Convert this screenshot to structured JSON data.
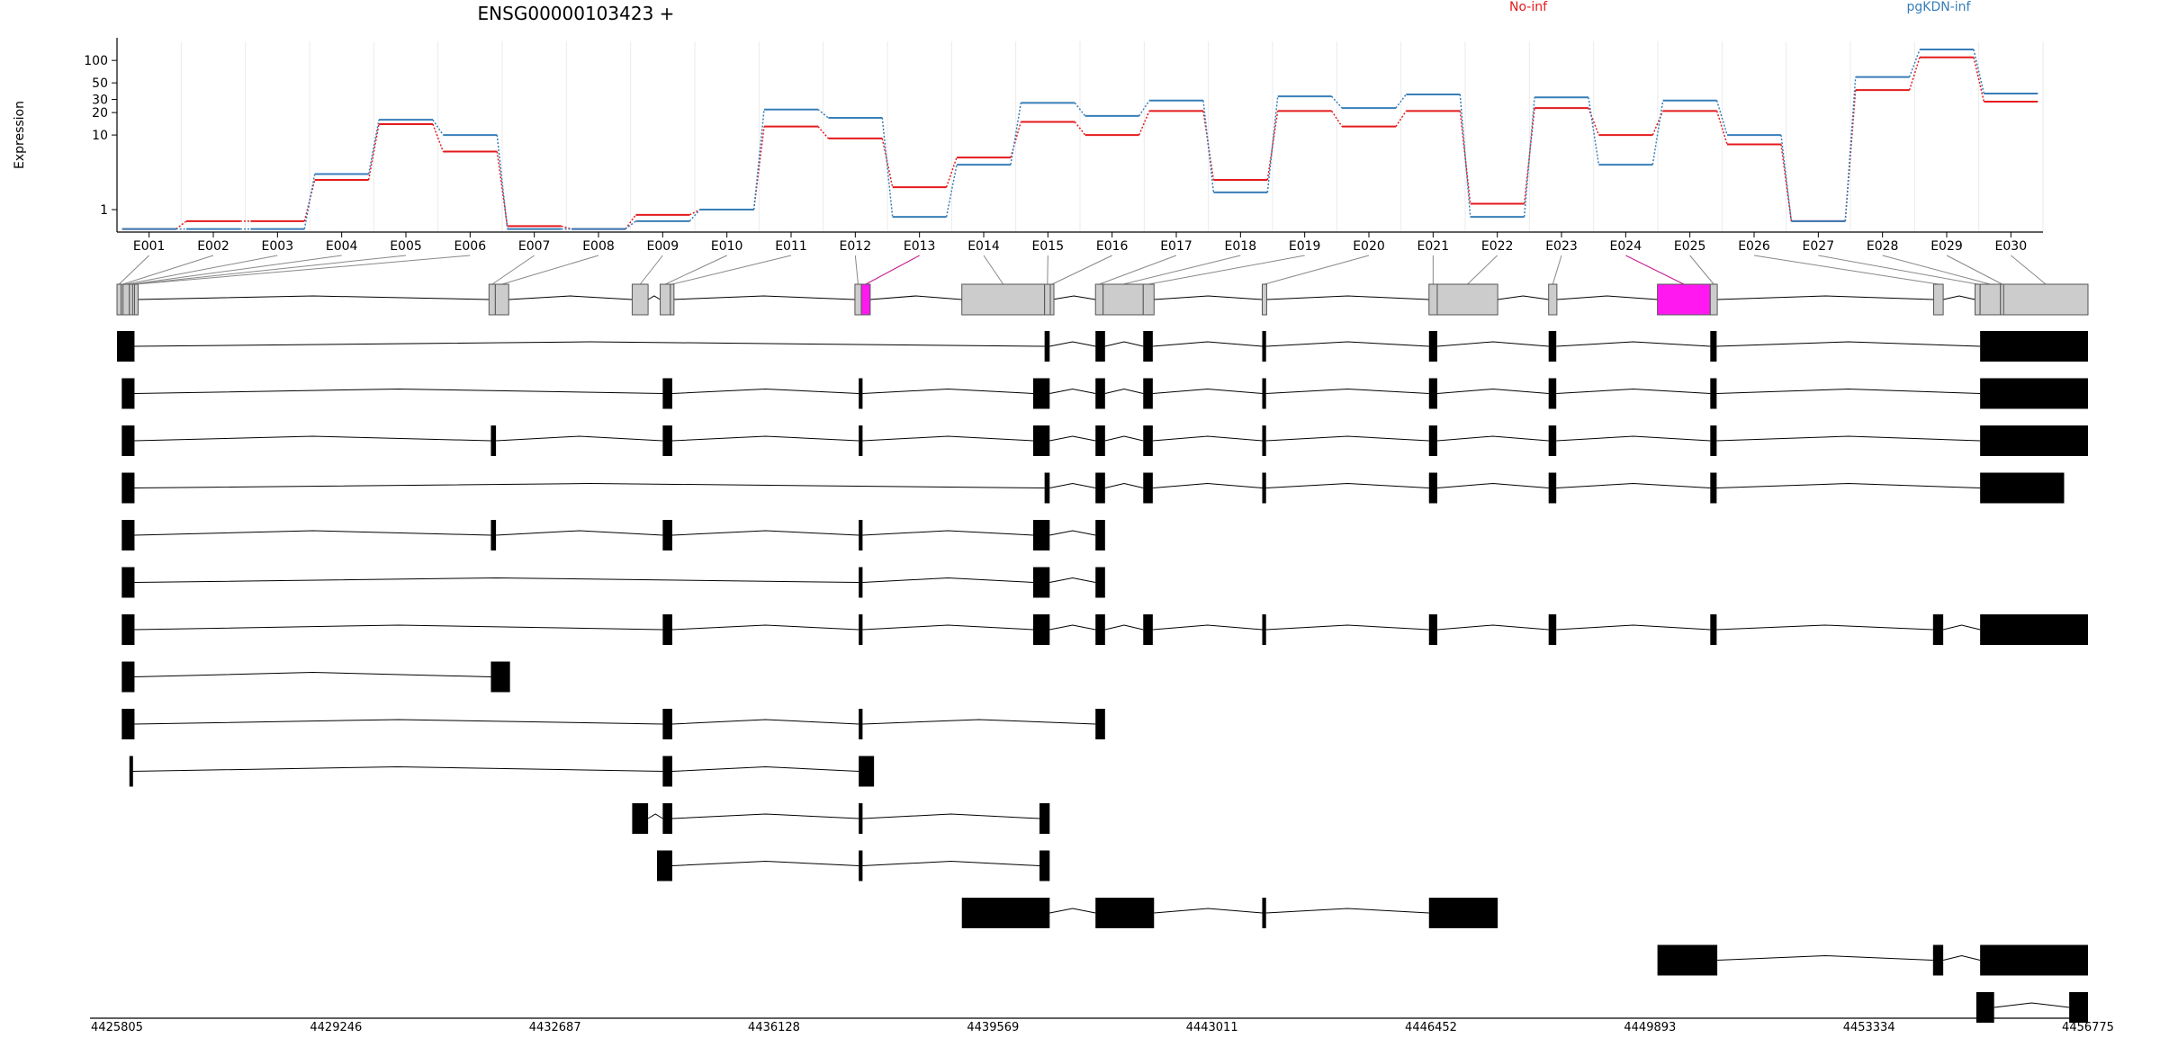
{
  "chart_data": {
    "type": "line",
    "title": "ENSG00000103423 +",
    "ylabel": "Expression",
    "yscale": "log",
    "ylim": [
      0.5,
      180
    ],
    "yticks": [
      1,
      10,
      20,
      30,
      50,
      100
    ],
    "grid": true,
    "legend_position": "top",
    "categories": [
      "E001",
      "E002",
      "E003",
      "E004",
      "E005",
      "E006",
      "E007",
      "E008",
      "E009",
      "E010",
      "E011",
      "E012",
      "E013",
      "E014",
      "E015",
      "E016",
      "E017",
      "E018",
      "E019",
      "E020",
      "E021",
      "E022",
      "E023",
      "E024",
      "E025",
      "E026",
      "E027",
      "E028",
      "E029",
      "E030"
    ],
    "series": [
      {
        "name": "No-inf",
        "color": "#e41a1c",
        "values": [
          0.55,
          0.7,
          0.7,
          2.5,
          14,
          6,
          0.6,
          0.55,
          0.85,
          1,
          13,
          9,
          2,
          5,
          15,
          10,
          21,
          2.5,
          21,
          13,
          21,
          1.2,
          23,
          10,
          21,
          7.5,
          0.7,
          40,
          110,
          28
        ]
      },
      {
        "name": "pgKDN-inf",
        "color": "#377eb8",
        "values": [
          0.55,
          0.55,
          0.55,
          3,
          16,
          10,
          0.55,
          0.55,
          0.7,
          1,
          22,
          17,
          0.8,
          4,
          27,
          18,
          29,
          1.7,
          33,
          23,
          35,
          0.8,
          32,
          4,
          29,
          10,
          0.7,
          60,
          140,
          36
        ]
      }
    ],
    "gene_model": {
      "genomic_ticks": [
        "4425805",
        "4429246",
        "4432687",
        "4436128",
        "4439569",
        "4443011",
        "4446452",
        "4449893",
        "4453334",
        "4456775"
      ],
      "genomic_range": [
        4425805,
        4456775
      ],
      "exon_bins": [
        {
          "id": "E001",
          "start": 4425805,
          "end": 4425870
        },
        {
          "id": "E002",
          "start": 4425870,
          "end": 4425900
        },
        {
          "id": "E003",
          "start": 4425900,
          "end": 4426000
        },
        {
          "id": "E004",
          "start": 4426000,
          "end": 4426050
        },
        {
          "id": "E005",
          "start": 4426050,
          "end": 4426080
        },
        {
          "id": "E006",
          "start": 4426080,
          "end": 4426120
        },
        {
          "id": "E007",
          "start": 4431650,
          "end": 4431750
        },
        {
          "id": "E008",
          "start": 4431750,
          "end": 4431960
        },
        {
          "id": "E009",
          "start": 4433900,
          "end": 4434150
        },
        {
          "id": "E010",
          "start": 4434340,
          "end": 4434500
        },
        {
          "id": "E011",
          "start": 4434500,
          "end": 4434530
        },
        {
          "id": "E012",
          "start": 4437400,
          "end": 4437500
        },
        {
          "id": "E013",
          "start": 4437500,
          "end": 4437640
        },
        {
          "id": "E014",
          "start": 4439080,
          "end": 4440380
        },
        {
          "id": "E015",
          "start": 4440380,
          "end": 4440470
        },
        {
          "id": "E016",
          "start": 4440470,
          "end": 4440500
        },
        {
          "id": "E017",
          "start": 4441180,
          "end": 4441300
        },
        {
          "id": "E018",
          "start": 4441300,
          "end": 4441930
        },
        {
          "id": "E019",
          "start": 4441930,
          "end": 4442100
        },
        {
          "id": "E020",
          "start": 4443800,
          "end": 4443870
        },
        {
          "id": "E021",
          "start": 4446420,
          "end": 4446550
        },
        {
          "id": "E022",
          "start": 4446550,
          "end": 4447500
        },
        {
          "id": "E023",
          "start": 4448300,
          "end": 4448430
        },
        {
          "id": "E024",
          "start": 4450010,
          "end": 4450840
        },
        {
          "id": "E025",
          "start": 4450840,
          "end": 4450950
        },
        {
          "id": "E026",
          "start": 4454350,
          "end": 4454500
        },
        {
          "id": "E027",
          "start": 4455000,
          "end": 4455080
        },
        {
          "id": "E028",
          "start": 4455080,
          "end": 4455400
        },
        {
          "id": "E029",
          "start": 4455400,
          "end": 4455450
        },
        {
          "id": "E030",
          "start": 4455450,
          "end": 4456775
        }
      ],
      "highlighted_bins": [
        "E013",
        "E024"
      ],
      "highlight_color": "#ff19f0",
      "transcripts": [
        [
          [
            4425805,
            4426080
          ],
          [
            4440380,
            4440460
          ],
          [
            4441180,
            4441330
          ],
          [
            4441930,
            4442080
          ],
          [
            4443800,
            4443860
          ],
          [
            4446420,
            4446550
          ],
          [
            4448300,
            4448420
          ],
          [
            4450840,
            4450940
          ],
          [
            4455080,
            4456775
          ]
        ],
        [
          [
            4425880,
            4426080
          ],
          [
            4434380,
            4434530
          ],
          [
            4437460,
            4437520
          ],
          [
            4440200,
            4440460
          ],
          [
            4441180,
            4441330
          ],
          [
            4441930,
            4442080
          ],
          [
            4443800,
            4443860
          ],
          [
            4446420,
            4446550
          ],
          [
            4448300,
            4448420
          ],
          [
            4450840,
            4450940
          ],
          [
            4455080,
            4456775
          ]
        ],
        [
          [
            4425880,
            4426080
          ],
          [
            4431680,
            4431760
          ],
          [
            4434380,
            4434530
          ],
          [
            4437460,
            4437520
          ],
          [
            4440200,
            4440460
          ],
          [
            4441180,
            4441330
          ],
          [
            4441930,
            4442080
          ],
          [
            4443800,
            4443860
          ],
          [
            4446420,
            4446550
          ],
          [
            4448300,
            4448420
          ],
          [
            4450840,
            4450940
          ],
          [
            4455080,
            4456775
          ]
        ],
        [
          [
            4425880,
            4426080
          ],
          [
            4440380,
            4440460
          ],
          [
            4441180,
            4441330
          ],
          [
            4441930,
            4442080
          ],
          [
            4443800,
            4443860
          ],
          [
            4446420,
            4446550
          ],
          [
            4448300,
            4448420
          ],
          [
            4450840,
            4450940
          ],
          [
            4455080,
            4456400
          ]
        ],
        [
          [
            4425880,
            4426080
          ],
          [
            4431680,
            4431760
          ],
          [
            4434380,
            4434530
          ],
          [
            4437460,
            4437520
          ],
          [
            4440200,
            4440460
          ],
          [
            4441180,
            4441330
          ]
        ],
        [
          [
            4425880,
            4426080
          ],
          [
            4437460,
            4437520
          ],
          [
            4440200,
            4440460
          ],
          [
            4441180,
            4441330
          ]
        ],
        [
          [
            4425880,
            4426080
          ],
          [
            4434380,
            4434530
          ],
          [
            4437460,
            4437520
          ],
          [
            4440200,
            4440460
          ],
          [
            4441180,
            4441330
          ],
          [
            4441930,
            4442080
          ],
          [
            4443800,
            4443860
          ],
          [
            4446420,
            4446550
          ],
          [
            4448300,
            4448420
          ],
          [
            4450840,
            4450940
          ],
          [
            4454340,
            4454500
          ],
          [
            4455080,
            4456775
          ]
        ],
        [
          [
            4425880,
            4426080
          ],
          [
            4431680,
            4431980
          ]
        ],
        [
          [
            4425880,
            4426080
          ],
          [
            4434380,
            4434530
          ],
          [
            4437460,
            4437520
          ],
          [
            4441180,
            4441330
          ]
        ],
        [
          [
            4426000,
            4426050
          ],
          [
            4434380,
            4434530
          ],
          [
            4437460,
            4437700
          ]
        ],
        [
          [
            4433900,
            4434150
          ],
          [
            4434380,
            4434530
          ],
          [
            4437460,
            4437520
          ],
          [
            4440300,
            4440460
          ]
        ],
        [
          [
            4434290,
            4434530
          ],
          [
            4437460,
            4437520
          ],
          [
            4440300,
            4440460
          ]
        ],
        [
          [
            4439080,
            4440460
          ],
          [
            4441180,
            4442100
          ],
          [
            4443800,
            4443860
          ],
          [
            4446420,
            4447500
          ]
        ],
        [
          [
            4450010,
            4450950
          ],
          [
            4454340,
            4454500
          ],
          [
            4455080,
            4456775
          ]
        ],
        [
          [
            4455020,
            4455300
          ],
          [
            4456480,
            4456775
          ]
        ]
      ]
    }
  }
}
